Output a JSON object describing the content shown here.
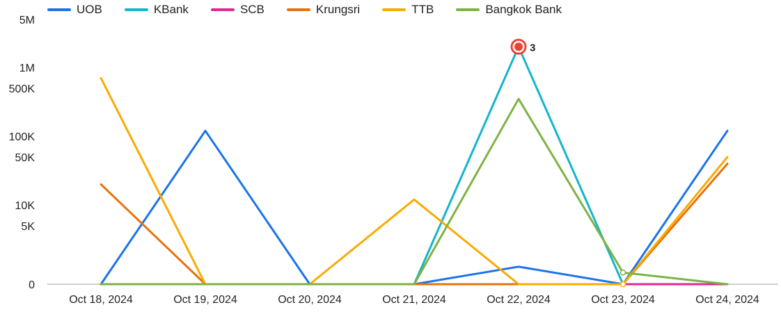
{
  "chart_data": {
    "type": "line",
    "title": "",
    "xlabel": "",
    "ylabel": "",
    "y_scale": "symlog",
    "ylim": [
      0,
      5000000
    ],
    "y_ticks": [
      {
        "value": 0,
        "label": "0"
      },
      {
        "value": 5000,
        "label": "5K"
      },
      {
        "value": 10000,
        "label": "10K"
      },
      {
        "value": 50000,
        "label": "50K"
      },
      {
        "value": 100000,
        "label": "100K"
      },
      {
        "value": 500000,
        "label": "500K"
      },
      {
        "value": 1000000,
        "label": "1M"
      },
      {
        "value": 5000000,
        "label": "5M"
      }
    ],
    "categories": [
      "Oct 18, 2024",
      "Oct 19, 2024",
      "Oct 20, 2024",
      "Oct 21, 2024",
      "Oct 22, 2024",
      "Oct 23, 2024",
      "Oct 24, 2024"
    ],
    "legend_position": "top-left",
    "grid": false,
    "series": [
      {
        "name": "UOB",
        "color": "#1a73e8",
        "values": [
          0,
          120000,
          0,
          0,
          1500,
          0,
          120000
        ]
      },
      {
        "name": "KBank",
        "color": "#12b5cb",
        "values": [
          0,
          0,
          0,
          0,
          2000000,
          0,
          0
        ]
      },
      {
        "name": "SCB",
        "color": "#e52592",
        "values": [
          0,
          0,
          0,
          0,
          0,
          0,
          0
        ]
      },
      {
        "name": "Krungsri",
        "color": "#e8710a",
        "values": [
          20000,
          0,
          0,
          0,
          0,
          0,
          40000
        ]
      },
      {
        "name": "TTB",
        "color": "#f9ab00",
        "values": [
          700000,
          0,
          0,
          12000,
          0,
          0,
          50000
        ]
      },
      {
        "name": "Bangkok Bank",
        "color": "#7cb342",
        "values": [
          0,
          0,
          0,
          0,
          350000,
          1000,
          0
        ]
      }
    ],
    "annotations": [
      {
        "category": "Oct 22, 2024",
        "series": "KBank",
        "label": "3",
        "color": "#ea4335"
      }
    ]
  }
}
